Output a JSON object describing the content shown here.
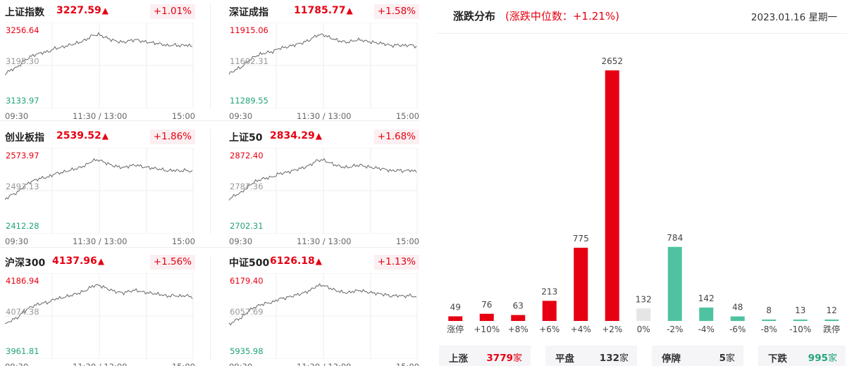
{
  "indices": [
    {
      "name": "上证指数",
      "value": "3227.59",
      "arrow": "▲",
      "change": "+1.01%",
      "high": "3256.64",
      "mid": "3195.30",
      "low": "3133.97"
    },
    {
      "name": "深证成指",
      "value": "11785.77",
      "arrow": "▲",
      "change": "+1.58%",
      "high": "11915.06",
      "mid": "11602.31",
      "low": "11289.55"
    },
    {
      "name": "创业板指",
      "value": "2539.52",
      "arrow": "▲",
      "change": "+1.86%",
      "high": "2573.97",
      "mid": "2493.13",
      "low": "2412.28"
    },
    {
      "name": "上证50",
      "value": "2834.29",
      "arrow": "▲",
      "change": "+1.68%",
      "high": "2872.40",
      "mid": "2787.36",
      "low": "2702.31"
    },
    {
      "name": "沪深300",
      "value": "4137.96",
      "arrow": "▲",
      "change": "+1.56%",
      "high": "4186.94",
      "mid": "4074.38",
      "low": "3961.81"
    },
    {
      "name": "中证500",
      "value": "6126.18",
      "arrow": "▲",
      "change": "+1.13%",
      "high": "6179.40",
      "mid": "6057.69",
      "low": "5935.98"
    }
  ],
  "time_axis": {
    "start": "09:30",
    "mid": "11:30 / 13:00",
    "end": "15:00"
  },
  "distribution": {
    "title": "涨跌分布",
    "subtitle": "(涨跌中位数：+1.21%)",
    "date": "2023.01.16 星期一"
  },
  "colors": {
    "up": "#e60012",
    "flat": "#e5e5e5",
    "down": "#4fc3a1"
  },
  "chart_data": {
    "type": "bar",
    "categories": [
      "涨停",
      "+10%",
      "+8%",
      "+6%",
      "+4%",
      "+2%",
      "0%",
      "-2%",
      "-4%",
      "-6%",
      "-8%",
      "-10%",
      "跌停"
    ],
    "values": [
      49,
      76,
      63,
      213,
      775,
      2652,
      132,
      784,
      142,
      48,
      8,
      13,
      12
    ],
    "groups": [
      "up",
      "up",
      "up",
      "up",
      "up",
      "up",
      "flat",
      "down",
      "down",
      "down",
      "down",
      "down",
      "down"
    ],
    "ylim": [
      0,
      2652
    ]
  },
  "summary": [
    {
      "label": "上涨",
      "value": "3779",
      "unit": "家",
      "color": "#e60012"
    },
    {
      "label": "平盘",
      "value": "132",
      "unit": "家",
      "color": "#333333"
    },
    {
      "label": "停牌",
      "value": "5",
      "unit": "家",
      "color": "#333333"
    },
    {
      "label": "下跌",
      "value": "995",
      "unit": "家",
      "color": "#22a37a"
    }
  ]
}
